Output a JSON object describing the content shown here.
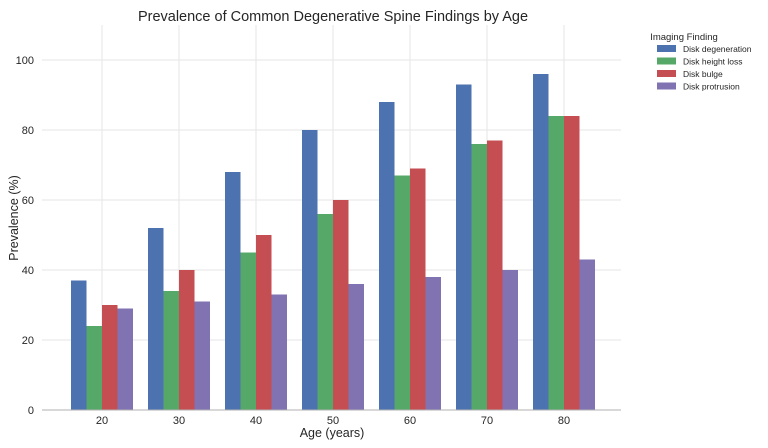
{
  "chart_data": {
    "type": "bar",
    "title": "Prevalence of Common Degenerative Spine Findings by Age",
    "xlabel": "Age (years)",
    "ylabel": "Prevalence (%)",
    "categories": [
      "20",
      "30",
      "40",
      "50",
      "60",
      "70",
      "80"
    ],
    "ylim": [
      0,
      110
    ],
    "yticks": [
      0,
      20,
      40,
      60,
      80,
      100
    ],
    "grid": true,
    "legend": {
      "title": "Imaging Finding",
      "placement": "outside-top-right"
    },
    "series": [
      {
        "name": "Disk degeneration",
        "color": "#4c72b0",
        "values": [
          37,
          52,
          68,
          80,
          88,
          93,
          96
        ]
      },
      {
        "name": "Disk height loss",
        "color": "#55a868",
        "values": [
          24,
          34,
          45,
          56,
          67,
          76,
          84
        ]
      },
      {
        "name": "Disk bulge",
        "color": "#c44e52",
        "values": [
          30,
          40,
          50,
          60,
          69,
          77,
          84
        ]
      },
      {
        "name": "Disk protrusion",
        "color": "#8172b2",
        "values": [
          29,
          31,
          33,
          36,
          38,
          40,
          43
        ]
      }
    ]
  }
}
